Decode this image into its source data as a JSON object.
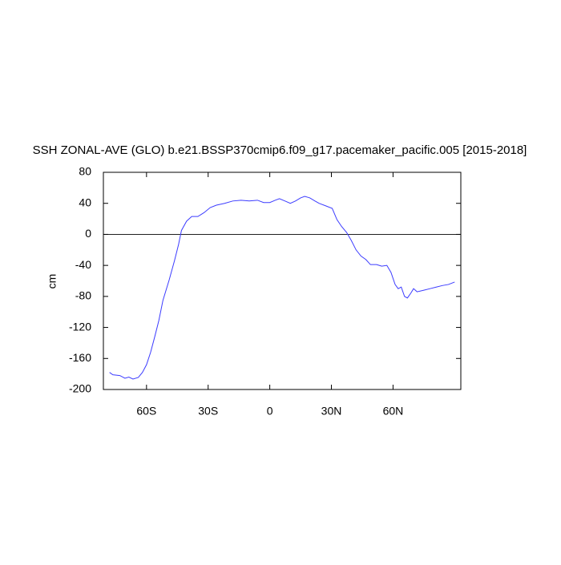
{
  "chart_data": {
    "type": "line",
    "title": "SSH ZONAL-AVE (GLO) b.e21.BSSP370cmip6.f09_g17.pacemaker_pacific.005 [2015-2018]",
    "ylabel": "cm",
    "x": [
      -78,
      -76.4,
      -73,
      -70.5,
      -68.6,
      -66.6,
      -64,
      -62,
      -60,
      -58,
      -56,
      -54,
      -52,
      -49,
      -46.4,
      -44.4,
      -43,
      -40.5,
      -38,
      -35,
      -32,
      -29,
      -26,
      -22,
      -18,
      -14,
      -10,
      -6,
      -3,
      0,
      2.7,
      4.7,
      7.4,
      10,
      12.5,
      15,
      17,
      19.5,
      22,
      24,
      27,
      30.4,
      32.7,
      35,
      37.4,
      39.7,
      42,
      44.4,
      46.8,
      49,
      52,
      54.5,
      57,
      59,
      61,
      62.5,
      64,
      65.6,
      67,
      68.6,
      70,
      71.7,
      75,
      78,
      81,
      84,
      87,
      90
    ],
    "series": [
      {
        "name": "SSH",
        "color": "#3c3cff",
        "values": [
          -178,
          -181,
          -182,
          -185.5,
          -184,
          -186.5,
          -184.5,
          -178,
          -168,
          -152,
          -132,
          -111,
          -85,
          -59,
          -34,
          -13,
          5,
          17,
          23,
          23,
          28,
          34.5,
          37.6,
          40,
          43,
          44,
          43,
          44,
          41,
          41,
          44,
          46,
          43,
          40,
          43,
          47,
          49,
          47,
          43,
          40,
          37,
          33.5,
          19,
          10,
          2.5,
          -8,
          -20,
          -28,
          -32.5,
          -39,
          -39,
          -41,
          -40,
          -49,
          -64.6,
          -70,
          -68,
          -80,
          -82,
          -76,
          -70,
          -74,
          -72,
          -70,
          -68,
          -66,
          -64.6,
          -61.5
        ]
      }
    ],
    "xlim": [
      -81,
      93
    ],
    "ylim": [
      -200,
      80
    ],
    "xticks": [
      {
        "value": -60,
        "label": "60S"
      },
      {
        "value": -30,
        "label": "30S"
      },
      0,
      {
        "value": 30,
        "label": "30N"
      },
      {
        "value": 60,
        "label": "60N"
      }
    ],
    "yticks": [
      -200,
      -160,
      -120,
      -80,
      -40,
      0,
      40,
      80
    ],
    "hline": 0
  }
}
